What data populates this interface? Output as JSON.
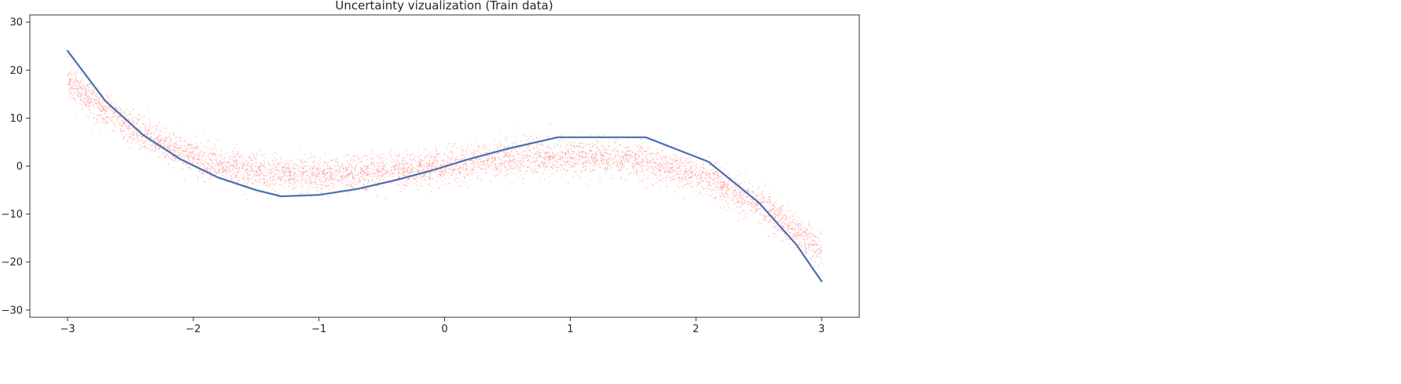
{
  "chart_data": {
    "type": "scatter",
    "title": "Uncertainty vizualization (Train data)",
    "xlabel": "",
    "ylabel": "",
    "xlim": [
      -3.3,
      3.3
    ],
    "ylim": [
      -31.5,
      31.5
    ],
    "xticks": [
      -3,
      -2,
      -1,
      0,
      1,
      2,
      3
    ],
    "xtick_labels": [
      "−3",
      "−2",
      "−1",
      "0",
      "1",
      "2",
      "3"
    ],
    "yticks": [
      30,
      20,
      10,
      0,
      -10,
      -20,
      -30
    ],
    "ytick_labels": [
      "30",
      "20",
      "10",
      "0",
      "−10",
      "−20",
      "−30"
    ],
    "grid": false,
    "legend": "none",
    "series": [
      {
        "type": "scatter",
        "color": "#ff7f7f",
        "function": "y = -x^3 + 3x + noise",
        "x_range": [
          -3,
          3
        ],
        "noise_std": 1.8,
        "point_count": 5500
      },
      {
        "type": "line",
        "color": "#4a6fb0",
        "x": [
          -3.0,
          -2.7,
          -2.4,
          -2.1,
          -1.8,
          -1.5,
          -1.3,
          -1.0,
          -0.7,
          -0.4,
          -0.1,
          0.2,
          0.5,
          0.9,
          1.3,
          1.6,
          2.1,
          2.5,
          2.8,
          3.0
        ],
        "y": [
          24.0,
          13.6,
          6.5,
          1.4,
          -2.4,
          -5.0,
          -6.3,
          -6.0,
          -4.8,
          -3.0,
          -0.9,
          1.5,
          3.6,
          6.0,
          6.0,
          6.0,
          0.9,
          -7.6,
          -16.4,
          -24.0
        ]
      }
    ]
  }
}
